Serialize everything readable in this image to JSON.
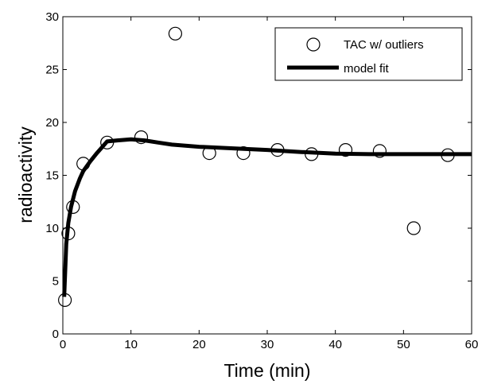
{
  "chart_data": {
    "type": "line",
    "title": "",
    "xlabel": "Time (min)",
    "ylabel": "radioactivity",
    "xlim": [
      0,
      60
    ],
    "ylim": [
      0,
      30
    ],
    "xticks": [
      0,
      10,
      20,
      30,
      40,
      50,
      60
    ],
    "yticks": [
      0,
      5,
      10,
      15,
      20,
      25,
      30
    ],
    "grid": false,
    "legend_position": "top-right",
    "series": [
      {
        "name": "TAC w/ outliers",
        "kind": "scatter",
        "marker": "open-circle",
        "color": "#000000",
        "x": [
          0.3,
          0.8,
          1.5,
          3.0,
          6.5,
          11.5,
          16.5,
          21.5,
          26.5,
          31.5,
          36.5,
          41.5,
          46.5,
          51.5,
          56.5
        ],
        "y": [
          3.2,
          9.5,
          12.0,
          16.1,
          18.1,
          18.6,
          28.4,
          17.1,
          17.1,
          17.4,
          17.0,
          17.4,
          17.3,
          10.0,
          16.9
        ]
      },
      {
        "name": "model fit",
        "kind": "line",
        "color": "#000000",
        "x": [
          0.2,
          0.5,
          0.8,
          1.2,
          1.8,
          2.5,
          3.0,
          4.0,
          5.0,
          6.5,
          8.0,
          10.0,
          12.0,
          14.0,
          16.0,
          18.0,
          20.0,
          25.0,
          30.0,
          35.0,
          40.0,
          45.0,
          50.0,
          55.0,
          60.0
        ],
        "y": [
          3.5,
          8.5,
          10.5,
          12.0,
          13.5,
          14.7,
          15.4,
          16.3,
          17.1,
          18.2,
          18.3,
          18.4,
          18.3,
          18.1,
          17.9,
          17.8,
          17.7,
          17.55,
          17.4,
          17.2,
          17.05,
          17.0,
          17.0,
          17.0,
          17.0
        ]
      }
    ]
  }
}
